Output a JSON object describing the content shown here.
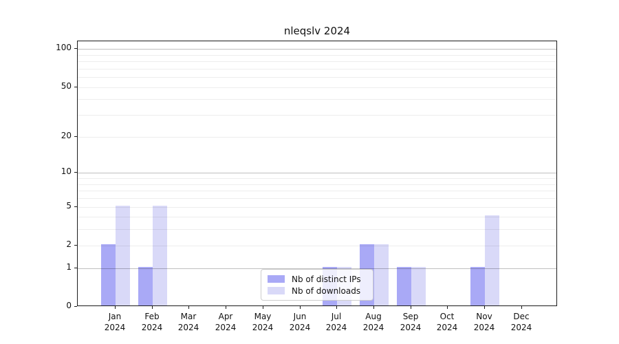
{
  "title": "nleqslv 2024",
  "chart_data": {
    "type": "bar",
    "title": "nleqslv 2024",
    "categories": [
      "Jan 2024",
      "Feb 2024",
      "Mar 2024",
      "Apr 2024",
      "May 2024",
      "Jun 2024",
      "Jul 2024",
      "Aug 2024",
      "Sep 2024",
      "Oct 2024",
      "Nov 2024",
      "Dec 2024"
    ],
    "month_labels": [
      "Jan",
      "Feb",
      "Mar",
      "Apr",
      "May",
      "Jun",
      "Jul",
      "Aug",
      "Sep",
      "Oct",
      "Nov",
      "Dec"
    ],
    "year_label": "2024",
    "series": [
      {
        "name": "Nb of distinct IPs",
        "color": "#a9a9f6",
        "values": [
          2,
          1,
          0,
          0,
          0,
          0,
          1,
          2,
          1,
          0,
          1,
          0
        ]
      },
      {
        "name": "Nb of downloads",
        "color": "#d9d9f8",
        "values": [
          5,
          5,
          0,
          0,
          0,
          0,
          1,
          2,
          1,
          0,
          4,
          0
        ]
      }
    ],
    "yscale": "log1p",
    "ylim": [
      0,
      115
    ],
    "ytick_values": [
      0,
      1,
      2,
      5,
      10,
      20,
      50,
      100
    ],
    "ytick_labels": [
      "0",
      "1",
      "2",
      "5",
      "10",
      "20",
      "50",
      "100"
    ],
    "grid_major_values": [
      1,
      10,
      100
    ],
    "grid_minor_values": [
      2,
      3,
      4,
      5,
      6,
      7,
      8,
      9,
      20,
      30,
      40,
      50,
      60,
      70,
      80,
      90
    ],
    "grid": "on",
    "legend_position": "lower center",
    "xlabel": "",
    "ylabel": ""
  },
  "legend": {
    "items": [
      {
        "label": "Nb of distinct IPs",
        "swatch_color": "#a9a9f6"
      },
      {
        "label": "Nb of downloads",
        "swatch_color": "#d9d9f8"
      }
    ]
  },
  "colors": {
    "background": "#ffffff",
    "bar_distinct_ips": "#a9a9f6",
    "bar_downloads": "#d9d9f8",
    "grid_major": "rgba(0,0,0,0.25)",
    "grid_minor": "rgba(0,0,0,0.07)",
    "spine": "#1a1a1a",
    "text": "#111111",
    "legend_border": "#cccccc",
    "legend_background": "rgba(255,255,255,0.8)"
  }
}
